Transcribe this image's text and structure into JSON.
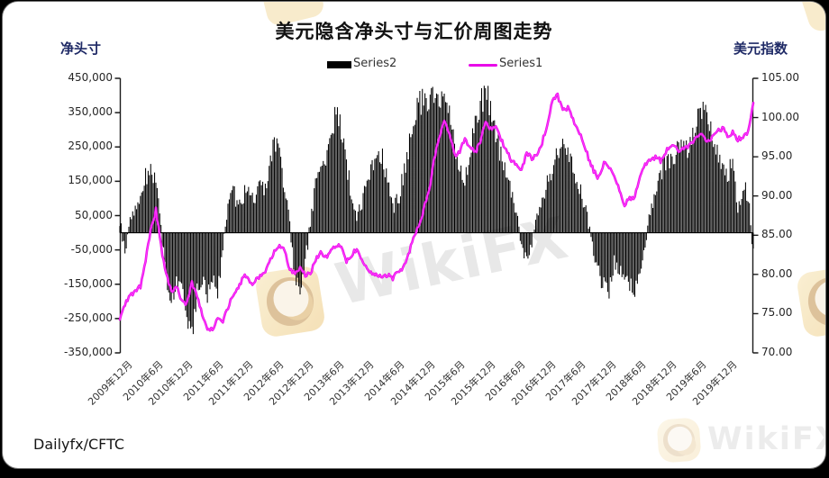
{
  "title": "美元隐含净头寸与汇价周图走势",
  "source_label": "Dailyfx/CFTC",
  "watermark": {
    "brand_text": "WikiFX"
  },
  "legend": {
    "series2_label": "Series2",
    "series1_label": "Series1",
    "series2_color": "#000000",
    "series1_color": "#E80CE8"
  },
  "left_axis": {
    "title": "净头寸",
    "tick_labels": [
      "450,000",
      "350,000",
      "250,000",
      "150,000",
      "50,000",
      "-50,000",
      "-150,000",
      "-250,000",
      "-350,000"
    ]
  },
  "right_axis": {
    "title": "美元指数",
    "tick_labels": [
      "105.00",
      "100.00",
      "95.00",
      "90.00",
      "85.00",
      "80.00",
      "75.00",
      "70.00"
    ]
  },
  "x_axis": {
    "tick_labels": [
      "2009年12月",
      "2010年6月",
      "2010年12月",
      "2011年6月",
      "2011年12月",
      "2012年6月",
      "2012年12月",
      "2013年6月",
      "2013年12月",
      "2014年6月",
      "2014年12月",
      "2015年6月",
      "2015年12月",
      "2016年6月",
      "2016年12月",
      "2017年6月",
      "2017年12月",
      "2018年6月",
      "2018年12月",
      "2019年6月",
      "2019年12月"
    ]
  },
  "chart_data": {
    "type": "mixed",
    "title": "美元隐含净头寸与汇价周图走势",
    "x_labels": [
      "2009年12月",
      "2010年6月",
      "2010年12月",
      "2011年6月",
      "2011年12月",
      "2012年6月",
      "2012年12月",
      "2013年6月",
      "2013年12月",
      "2014年6月",
      "2014年12月",
      "2015年6月",
      "2015年12月",
      "2016年6月",
      "2016年12月",
      "2017年6月",
      "2017年12月",
      "2018年6月",
      "2018年12月",
      "2019年6月",
      "2019年12月"
    ],
    "x_start": "2009-12",
    "x_end": "2020-03",
    "x_step": "1 month (values estimated from weekly chart)",
    "ylim_left": [
      -350000,
      450000
    ],
    "ylim_right": [
      70,
      105
    ],
    "grid": false,
    "legend_position": "top",
    "series": [
      {
        "name": "Series2",
        "label_cn": "净头寸",
        "type": "bar",
        "axis": "left",
        "color": "#000000",
        "values": [
          30000,
          -60000,
          45000,
          70000,
          110000,
          160000,
          185000,
          150000,
          20000,
          -140000,
          -190000,
          -150000,
          -125000,
          -230000,
          -295000,
          -175000,
          -130000,
          -195000,
          -120000,
          -170000,
          -40000,
          90000,
          120000,
          80000,
          110000,
          130000,
          100000,
          140000,
          120000,
          180000,
          270000,
          245000,
          130000,
          20000,
          -120000,
          -200000,
          -90000,
          30000,
          140000,
          200000,
          220000,
          290000,
          350000,
          300000,
          210000,
          100000,
          40000,
          90000,
          150000,
          200000,
          240000,
          215000,
          140000,
          65000,
          95000,
          160000,
          240000,
          325000,
          370000,
          390000,
          400000,
          385000,
          395000,
          400000,
          345000,
          250000,
          180000,
          160000,
          230000,
          310000,
          375000,
          400000,
          370000,
          290000,
          225000,
          165000,
          115000,
          55000,
          -35000,
          -80000,
          -35000,
          45000,
          95000,
          145000,
          195000,
          245000,
          260000,
          225000,
          180000,
          150000,
          95000,
          25000,
          -65000,
          -120000,
          -150000,
          -175000,
          -85000,
          -115000,
          -140000,
          -155000,
          -175000,
          -110000,
          -35000,
          60000,
          125000,
          180000,
          205000,
          225000,
          235000,
          250000,
          245000,
          265000,
          340000,
          365000,
          330000,
          300000,
          225000,
          195000,
          175000,
          195000,
          60000,
          140000,
          110000,
          -55000
        ]
      },
      {
        "name": "Series1",
        "label_cn": "美元指数",
        "type": "line",
        "axis": "right",
        "color": "#E80CE8",
        "values": [
          74.5,
          76.3,
          77.3,
          77.9,
          78.4,
          81.8,
          85.8,
          88.2,
          83.5,
          80.0,
          77.8,
          78.5,
          76.5,
          76.3,
          79.0,
          77.2,
          74.8,
          73.2,
          72.9,
          74.6,
          74.2,
          75.8,
          77.3,
          78.2,
          79.8,
          79.3,
          78.8,
          79.8,
          80.1,
          81.5,
          82.8,
          83.6,
          83.0,
          80.5,
          80.0,
          81.0,
          80.0,
          80.2,
          81.8,
          82.8,
          82.2,
          83.3,
          83.4,
          83.6,
          81.7,
          82.4,
          83.4,
          81.8,
          80.8,
          80.2,
          80.0,
          79.7,
          79.9,
          79.6,
          80.2,
          80.8,
          82.6,
          84.8,
          86.3,
          88.2,
          90.5,
          94.5,
          97.5,
          99.6,
          97.8,
          95.3,
          95.8,
          97.4,
          96.2,
          95.6,
          97.0,
          99.3,
          98.6,
          99.0,
          97.2,
          95.8,
          94.6,
          94.0,
          93.2,
          95.5,
          94.8,
          95.3,
          96.8,
          99.0,
          102.5,
          102.9,
          100.8,
          101.2,
          99.8,
          98.5,
          96.8,
          94.8,
          93.2,
          92.3,
          94.3,
          93.8,
          92.5,
          90.8,
          88.9,
          89.6,
          90.0,
          92.5,
          94.2,
          94.5,
          95.0,
          94.4,
          95.6,
          96.5,
          96.2,
          95.8,
          96.4,
          96.7,
          97.3,
          97.8,
          96.8,
          97.4,
          98.2,
          98.7,
          97.6,
          98.0,
          97.2,
          97.5,
          98.3,
          102.2
        ]
      }
    ]
  }
}
